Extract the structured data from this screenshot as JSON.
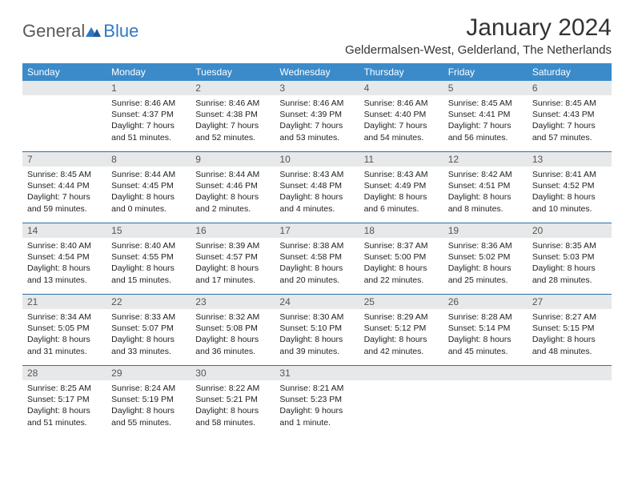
{
  "logo": {
    "part1": "General",
    "part2": "Blue"
  },
  "title": "January 2024",
  "subtitle": "Geldermalsen-West, Gelderland, The Netherlands",
  "day_headers": [
    "Sunday",
    "Monday",
    "Tuesday",
    "Wednesday",
    "Thursday",
    "Friday",
    "Saturday"
  ],
  "colors": {
    "header_bg": "#3b8bca",
    "header_text": "#ffffff",
    "daybar_bg": "#e7e8e9",
    "row_border": "#2f6fa8",
    "logo_accent": "#2f78c4"
  },
  "weeks": [
    [
      null,
      {
        "n": "1",
        "sr": "Sunrise: 8:46 AM",
        "ss": "Sunset: 4:37 PM",
        "dl": "Daylight: 7 hours and 51 minutes."
      },
      {
        "n": "2",
        "sr": "Sunrise: 8:46 AM",
        "ss": "Sunset: 4:38 PM",
        "dl": "Daylight: 7 hours and 52 minutes."
      },
      {
        "n": "3",
        "sr": "Sunrise: 8:46 AM",
        "ss": "Sunset: 4:39 PM",
        "dl": "Daylight: 7 hours and 53 minutes."
      },
      {
        "n": "4",
        "sr": "Sunrise: 8:46 AM",
        "ss": "Sunset: 4:40 PM",
        "dl": "Daylight: 7 hours and 54 minutes."
      },
      {
        "n": "5",
        "sr": "Sunrise: 8:45 AM",
        "ss": "Sunset: 4:41 PM",
        "dl": "Daylight: 7 hours and 56 minutes."
      },
      {
        "n": "6",
        "sr": "Sunrise: 8:45 AM",
        "ss": "Sunset: 4:43 PM",
        "dl": "Daylight: 7 hours and 57 minutes."
      }
    ],
    [
      {
        "n": "7",
        "sr": "Sunrise: 8:45 AM",
        "ss": "Sunset: 4:44 PM",
        "dl": "Daylight: 7 hours and 59 minutes."
      },
      {
        "n": "8",
        "sr": "Sunrise: 8:44 AM",
        "ss": "Sunset: 4:45 PM",
        "dl": "Daylight: 8 hours and 0 minutes."
      },
      {
        "n": "9",
        "sr": "Sunrise: 8:44 AM",
        "ss": "Sunset: 4:46 PM",
        "dl": "Daylight: 8 hours and 2 minutes."
      },
      {
        "n": "10",
        "sr": "Sunrise: 8:43 AM",
        "ss": "Sunset: 4:48 PM",
        "dl": "Daylight: 8 hours and 4 minutes."
      },
      {
        "n": "11",
        "sr": "Sunrise: 8:43 AM",
        "ss": "Sunset: 4:49 PM",
        "dl": "Daylight: 8 hours and 6 minutes."
      },
      {
        "n": "12",
        "sr": "Sunrise: 8:42 AM",
        "ss": "Sunset: 4:51 PM",
        "dl": "Daylight: 8 hours and 8 minutes."
      },
      {
        "n": "13",
        "sr": "Sunrise: 8:41 AM",
        "ss": "Sunset: 4:52 PM",
        "dl": "Daylight: 8 hours and 10 minutes."
      }
    ],
    [
      {
        "n": "14",
        "sr": "Sunrise: 8:40 AM",
        "ss": "Sunset: 4:54 PM",
        "dl": "Daylight: 8 hours and 13 minutes."
      },
      {
        "n": "15",
        "sr": "Sunrise: 8:40 AM",
        "ss": "Sunset: 4:55 PM",
        "dl": "Daylight: 8 hours and 15 minutes."
      },
      {
        "n": "16",
        "sr": "Sunrise: 8:39 AM",
        "ss": "Sunset: 4:57 PM",
        "dl": "Daylight: 8 hours and 17 minutes."
      },
      {
        "n": "17",
        "sr": "Sunrise: 8:38 AM",
        "ss": "Sunset: 4:58 PM",
        "dl": "Daylight: 8 hours and 20 minutes."
      },
      {
        "n": "18",
        "sr": "Sunrise: 8:37 AM",
        "ss": "Sunset: 5:00 PM",
        "dl": "Daylight: 8 hours and 22 minutes."
      },
      {
        "n": "19",
        "sr": "Sunrise: 8:36 AM",
        "ss": "Sunset: 5:02 PM",
        "dl": "Daylight: 8 hours and 25 minutes."
      },
      {
        "n": "20",
        "sr": "Sunrise: 8:35 AM",
        "ss": "Sunset: 5:03 PM",
        "dl": "Daylight: 8 hours and 28 minutes."
      }
    ],
    [
      {
        "n": "21",
        "sr": "Sunrise: 8:34 AM",
        "ss": "Sunset: 5:05 PM",
        "dl": "Daylight: 8 hours and 31 minutes."
      },
      {
        "n": "22",
        "sr": "Sunrise: 8:33 AM",
        "ss": "Sunset: 5:07 PM",
        "dl": "Daylight: 8 hours and 33 minutes."
      },
      {
        "n": "23",
        "sr": "Sunrise: 8:32 AM",
        "ss": "Sunset: 5:08 PM",
        "dl": "Daylight: 8 hours and 36 minutes."
      },
      {
        "n": "24",
        "sr": "Sunrise: 8:30 AM",
        "ss": "Sunset: 5:10 PM",
        "dl": "Daylight: 8 hours and 39 minutes."
      },
      {
        "n": "25",
        "sr": "Sunrise: 8:29 AM",
        "ss": "Sunset: 5:12 PM",
        "dl": "Daylight: 8 hours and 42 minutes."
      },
      {
        "n": "26",
        "sr": "Sunrise: 8:28 AM",
        "ss": "Sunset: 5:14 PM",
        "dl": "Daylight: 8 hours and 45 minutes."
      },
      {
        "n": "27",
        "sr": "Sunrise: 8:27 AM",
        "ss": "Sunset: 5:15 PM",
        "dl": "Daylight: 8 hours and 48 minutes."
      }
    ],
    [
      {
        "n": "28",
        "sr": "Sunrise: 8:25 AM",
        "ss": "Sunset: 5:17 PM",
        "dl": "Daylight: 8 hours and 51 minutes."
      },
      {
        "n": "29",
        "sr": "Sunrise: 8:24 AM",
        "ss": "Sunset: 5:19 PM",
        "dl": "Daylight: 8 hours and 55 minutes."
      },
      {
        "n": "30",
        "sr": "Sunrise: 8:22 AM",
        "ss": "Sunset: 5:21 PM",
        "dl": "Daylight: 8 hours and 58 minutes."
      },
      {
        "n": "31",
        "sr": "Sunrise: 8:21 AM",
        "ss": "Sunset: 5:23 PM",
        "dl": "Daylight: 9 hours and 1 minute."
      },
      null,
      null,
      null
    ]
  ]
}
